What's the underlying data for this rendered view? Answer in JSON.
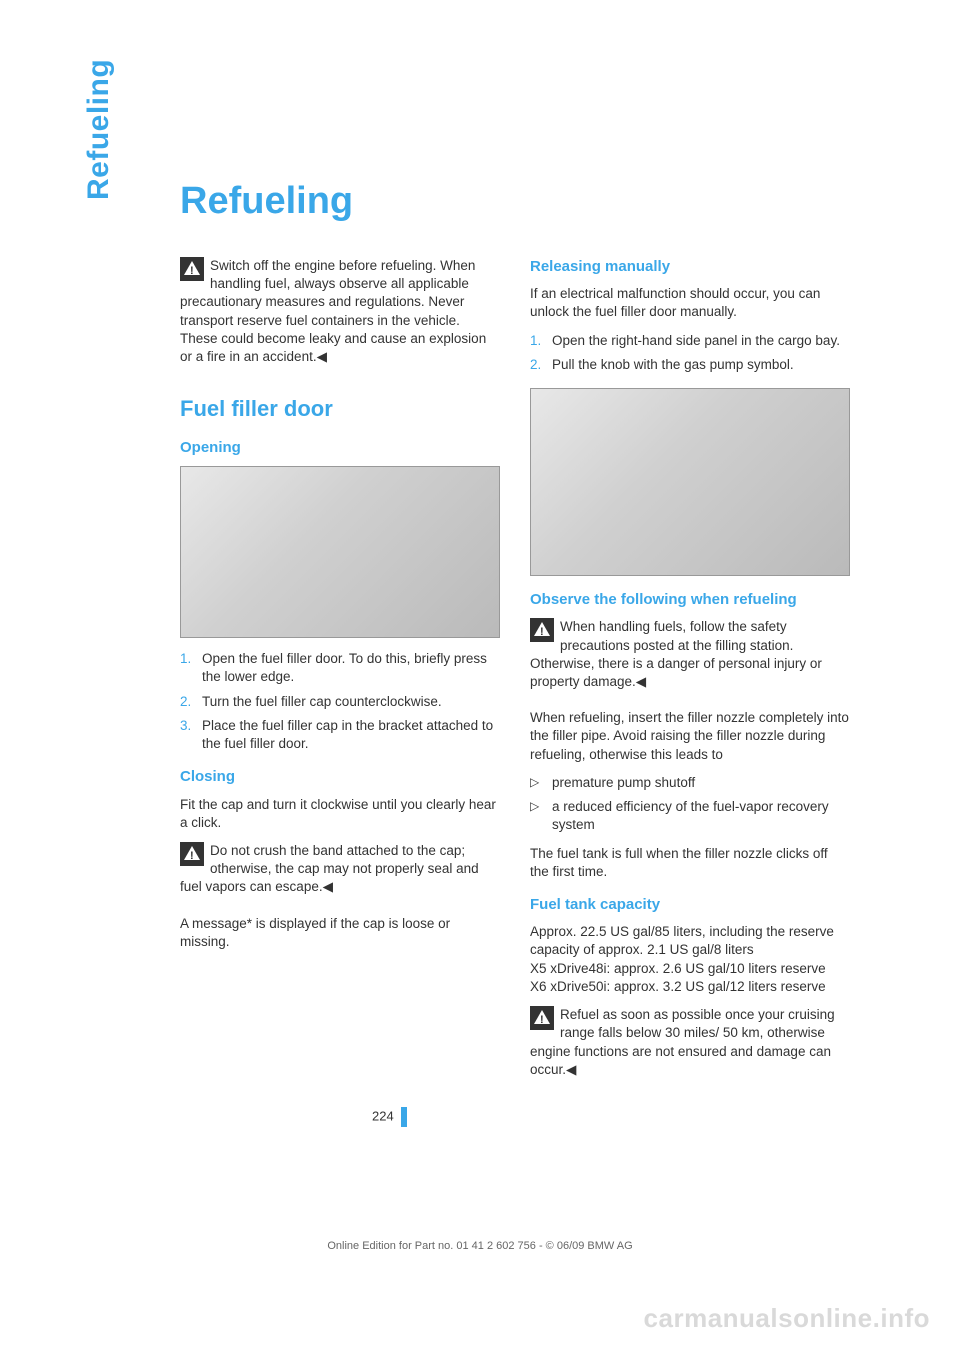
{
  "colors": {
    "accent": "#3aa7e8",
    "text": "#333333",
    "watermark": "#d9d9d9",
    "footer": "#666666"
  },
  "side_tab": "Refueling",
  "page_title": "Refueling",
  "page_number": "224",
  "footer": "Online Edition for Part no. 01 41 2 602 756 - © 06/09 BMW AG",
  "watermark": "carmanualsonline.info",
  "left": {
    "warning1": "Switch off the engine before refueling. When handling fuel, always observe all applicable precautionary measures and regulations. Never transport reserve fuel containers in the vehicle. These could become leaky and cause an explosion or a fire in an accident.◀",
    "h2_fuel_filler": "Fuel filler door",
    "h3_opening": "Opening",
    "opening_steps": [
      "Open the fuel filler door. To do this, briefly press the lower edge.",
      "Turn the fuel filler cap counterclockwise.",
      "Place the fuel filler cap in the bracket attached to the fuel filler door."
    ],
    "h3_closing": "Closing",
    "closing_p": "Fit the cap and turn it clockwise until you clearly hear a click.",
    "warning2": "Do not crush the band attached to the cap; otherwise, the cap may not properly seal and fuel vapors can escape.◀",
    "msg_p": "A message* is displayed if the cap is loose or missing."
  },
  "right": {
    "h3_releasing": "Releasing manually",
    "releasing_p": "If an electrical malfunction should occur, you can unlock the fuel filler door manually.",
    "releasing_steps": [
      "Open the right-hand side panel in the cargo bay.",
      "Pull the knob with the gas pump symbol."
    ],
    "h3_observe": "Observe the following when refueling",
    "warning3": "When handling fuels, follow the safety precautions posted at the filling station. Otherwise, there is a danger of personal injury or property damage.◀",
    "refuel_p": "When refueling, insert the filler nozzle completely into the filler pipe. Avoid raising the filler nozzle during refueling, otherwise this leads to",
    "bullets": [
      "premature pump shutoff",
      "a reduced efficiency of the fuel-vapor recovery system"
    ],
    "full_p": "The fuel tank is full when the filler nozzle clicks off the first time.",
    "h3_capacity": "Fuel tank capacity",
    "capacity_p": "Approx. 22.5 US gal/85 liters, including the reserve capacity of approx. 2.1 US gal/8 liters\nX5 xDrive48i: approx. 2.6 US gal/10 liters reserve\nX6 xDrive50i: approx. 3.2 US gal/12 liters reserve",
    "warning4": "Refuel as soon as possible once your cruising range falls below 30 miles/ 50 km, otherwise engine functions are not ensured and damage can occur.◀"
  }
}
